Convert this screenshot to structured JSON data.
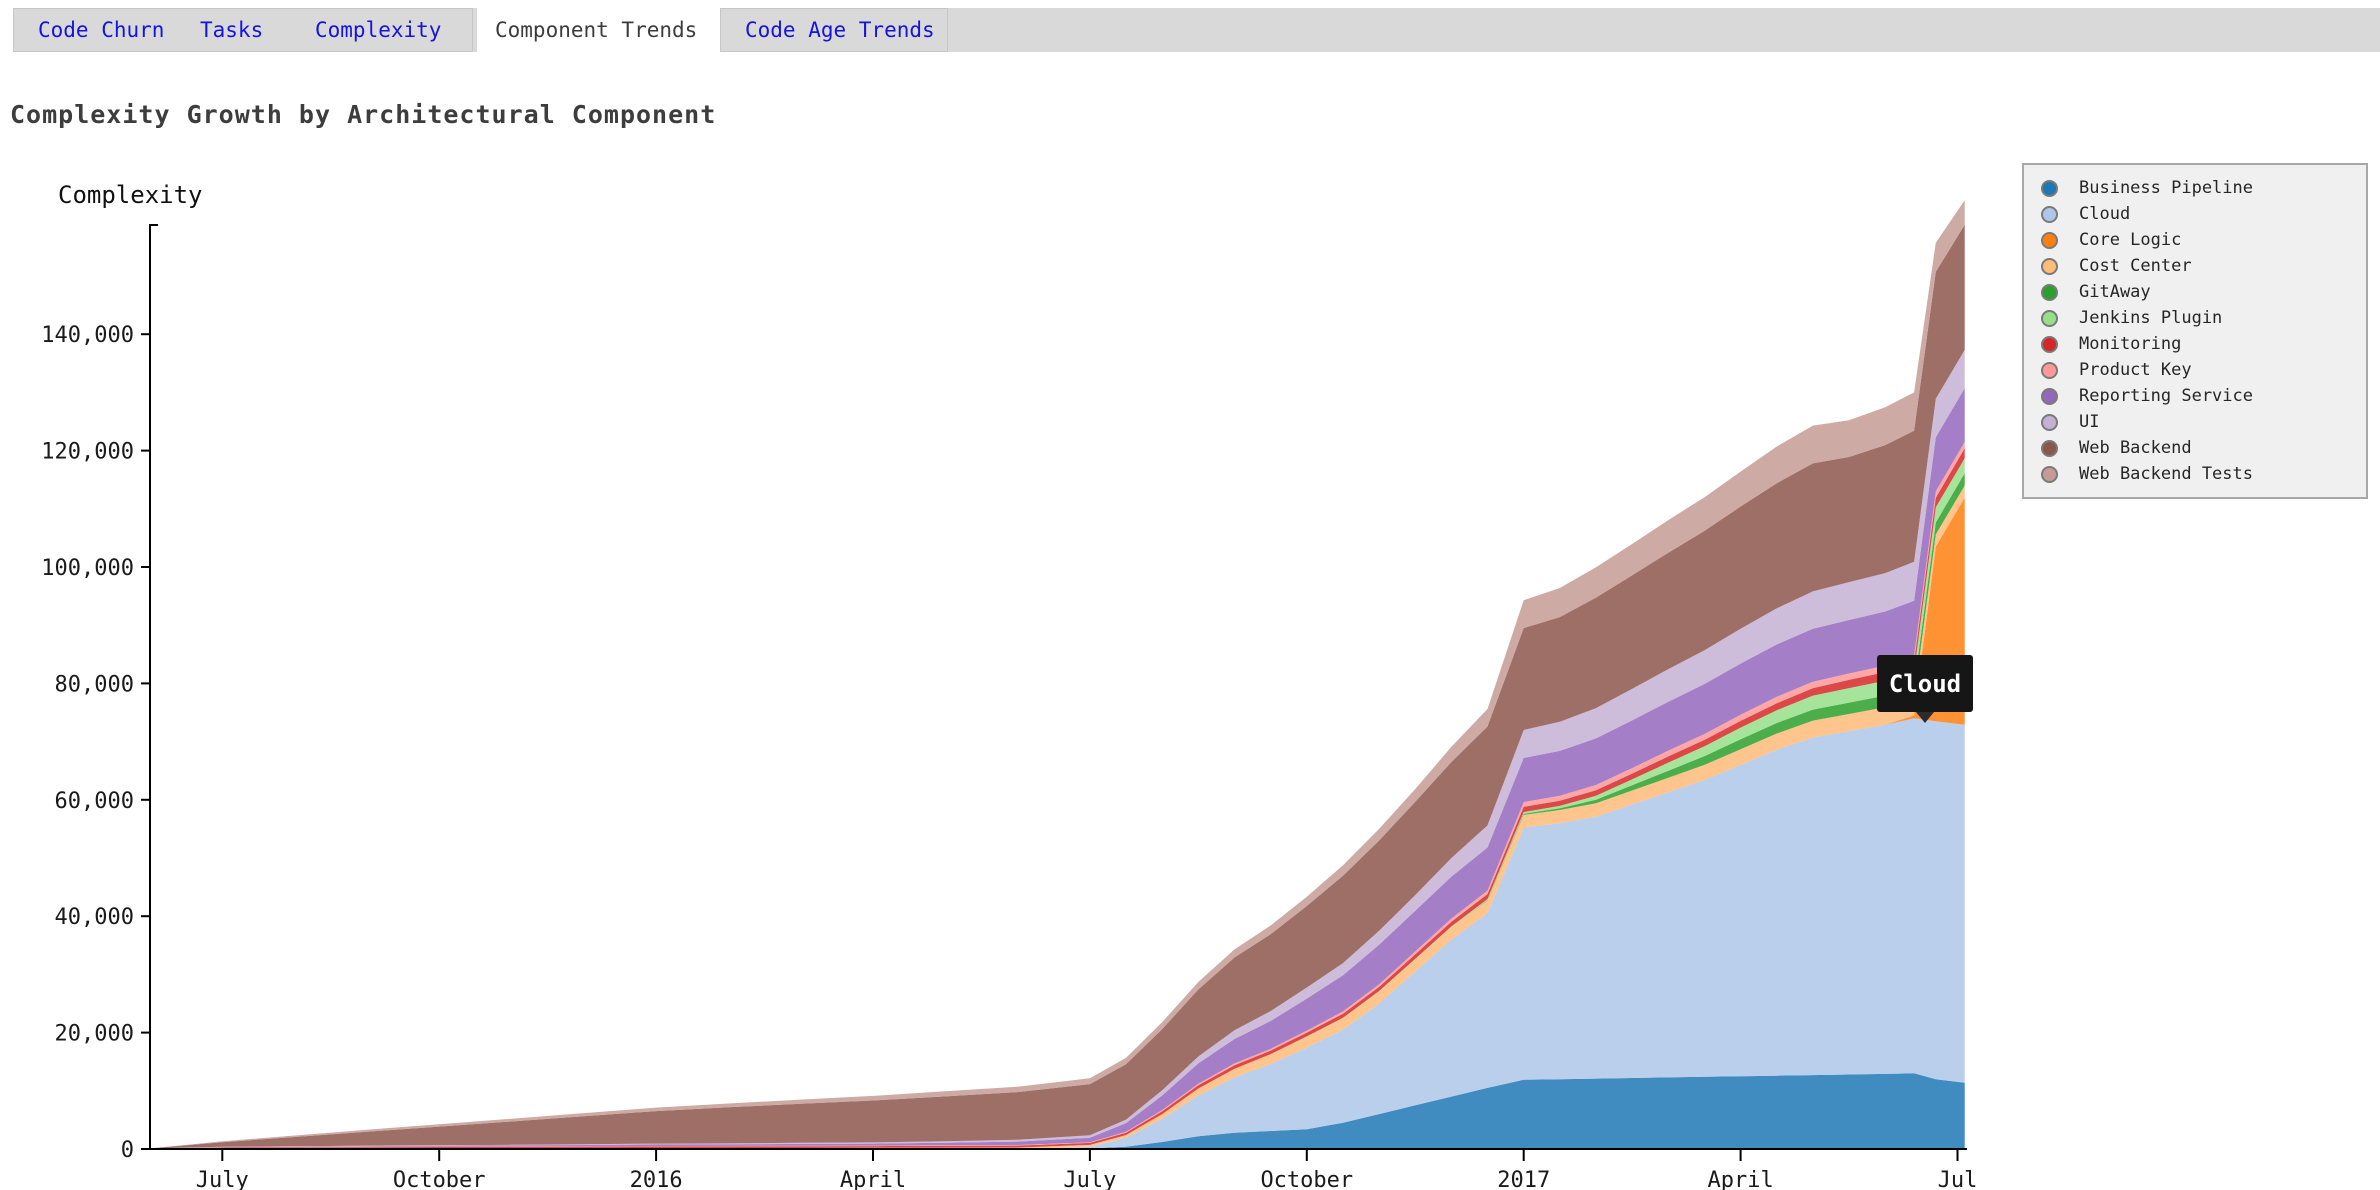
{
  "tabs": {
    "items": [
      {
        "label": "Code Churn",
        "active": false
      },
      {
        "label": "Tasks",
        "active": false
      },
      {
        "label": "Complexity",
        "active": false
      },
      {
        "label": "Component Trends",
        "active": true
      },
      {
        "label": "Code Age Trends",
        "active": false
      }
    ]
  },
  "header": {
    "title": "Complexity Growth by Architectural Component"
  },
  "tooltip": {
    "label": "Cloud"
  },
  "chart_data": {
    "type": "area",
    "stacked": true,
    "title": "Complexity Growth by Architectural Component",
    "xlabel": "",
    "ylabel": "Complexity",
    "grid": false,
    "legend_position": "right",
    "ylim": [
      0,
      158000
    ],
    "y_ticks": [
      0,
      20000,
      40000,
      60000,
      80000,
      100000,
      120000,
      140000
    ],
    "x_months_since_jun2015": [
      0,
      1,
      2,
      3,
      4,
      5,
      6,
      7,
      8,
      9,
      10,
      11,
      12,
      13,
      13.5,
      14,
      14.5,
      15,
      15.5,
      16,
      16.5,
      17,
      17.5,
      18,
      18.5,
      19,
      19.5,
      20,
      20.5,
      21,
      21.5,
      22,
      22.5,
      23,
      23.5,
      24,
      24.4,
      24.7,
      25.1
    ],
    "x_tick_months": [
      1,
      4,
      7,
      10,
      13,
      16,
      19,
      22,
      25
    ],
    "x_tick_labels": [
      "July",
      "October",
      "2016",
      "April",
      "July",
      "October",
      "2017",
      "April",
      "Jul"
    ],
    "series": [
      {
        "name": "Business Pipeline",
        "color": "#1f77b4",
        "values": [
          0,
          0,
          0,
          0,
          0,
          0,
          0,
          0,
          0,
          0,
          0,
          0,
          0,
          100,
          400,
          1200,
          2200,
          2800,
          3100,
          3400,
          4500,
          6000,
          7500,
          9000,
          10500,
          11900,
          12000,
          12100,
          12200,
          12300,
          12400,
          12500,
          12600,
          12700,
          12800,
          12900,
          13000,
          12000,
          11400
        ]
      },
      {
        "name": "Cloud",
        "color": "#aec7e8",
        "values": [
          0,
          0,
          0,
          0,
          0,
          0,
          0,
          0,
          0,
          0,
          0,
          0,
          0,
          300,
          1500,
          4000,
          7000,
          9500,
          11500,
          14000,
          16000,
          19000,
          23000,
          27000,
          30000,
          43300,
          44000,
          45000,
          47000,
          49000,
          51000,
          53500,
          56000,
          58000,
          59000,
          60000,
          61000,
          61500,
          61500
        ]
      },
      {
        "name": "Core Logic",
        "color": "#ff7f0e",
        "values": [
          0,
          0,
          0,
          0,
          0,
          0,
          0,
          0,
          0,
          0,
          0,
          0,
          0,
          0,
          0,
          0,
          0,
          0,
          0,
          0,
          0,
          0,
          0,
          0,
          0,
          0,
          0,
          0,
          0,
          0,
          0,
          0,
          0,
          0,
          0,
          0,
          500,
          30000,
          39000
        ]
      },
      {
        "name": "Cost Center",
        "color": "#ffbb78",
        "values": [
          0,
          50,
          70,
          90,
          100,
          110,
          130,
          150,
          160,
          180,
          200,
          230,
          260,
          300,
          500,
          800,
          1200,
          1500,
          1700,
          1900,
          2000,
          2050,
          2100,
          2100,
          2150,
          2200,
          2250,
          2300,
          2400,
          2500,
          2600,
          2700,
          2800,
          2900,
          2950,
          3000,
          3000,
          2100,
          2100
        ]
      },
      {
        "name": "GitAway",
        "color": "#2ca02c",
        "values": [
          0,
          0,
          0,
          0,
          0,
          0,
          0,
          0,
          0,
          0,
          0,
          0,
          0,
          0,
          0,
          0,
          0,
          0,
          0,
          0,
          0,
          0,
          0,
          0,
          100,
          200,
          300,
          600,
          900,
          1200,
          1500,
          1700,
          1800,
          1900,
          1950,
          2000,
          2000,
          2050,
          2100
        ]
      },
      {
        "name": "Jenkins Plugin",
        "color": "#98df8a",
        "values": [
          0,
          0,
          0,
          0,
          0,
          0,
          0,
          0,
          0,
          0,
          0,
          0,
          0,
          0,
          0,
          0,
          0,
          0,
          0,
          50,
          50,
          100,
          100,
          150,
          200,
          300,
          400,
          700,
          1000,
          1400,
          1700,
          2000,
          2200,
          2400,
          2500,
          2550,
          2600,
          2600,
          2600
        ]
      },
      {
        "name": "Monitoring",
        "color": "#d62728",
        "values": [
          100,
          200,
          220,
          240,
          250,
          260,
          280,
          300,
          300,
          300,
          300,
          320,
          330,
          350,
          400,
          500,
          550,
          600,
          600,
          650,
          700,
          700,
          750,
          800,
          850,
          900,
          900,
          950,
          1000,
          1050,
          1100,
          1150,
          1200,
          1300,
          1400,
          1500,
          1600,
          1650,
          1700
        ]
      },
      {
        "name": "Product Key",
        "color": "#ff9896",
        "values": [
          0,
          20,
          30,
          40,
          50,
          60,
          60,
          70,
          70,
          80,
          80,
          90,
          90,
          100,
          150,
          200,
          250,
          300,
          300,
          350,
          400,
          450,
          500,
          550,
          600,
          800,
          850,
          900,
          950,
          1000,
          1000,
          1050,
          1100,
          1100,
          1100,
          1100,
          1100,
          1100,
          1100
        ]
      },
      {
        "name": "Reporting Service",
        "color": "#9467bd",
        "values": [
          0,
          50,
          80,
          120,
          150,
          180,
          220,
          250,
          280,
          320,
          350,
          450,
          600,
          800,
          1500,
          2500,
          3500,
          4200,
          4800,
          5500,
          6200,
          6800,
          7000,
          7200,
          7400,
          7600,
          7700,
          8000,
          8200,
          8400,
          8600,
          8800,
          9000,
          9100,
          9200,
          9300,
          9400,
          9300,
          9200
        ]
      },
      {
        "name": "UI",
        "color": "#c5b0d5",
        "values": [
          0,
          50,
          70,
          90,
          100,
          120,
          130,
          150,
          160,
          180,
          200,
          250,
          300,
          400,
          600,
          900,
          1200,
          1500,
          1700,
          1900,
          2100,
          2400,
          2700,
          3200,
          3800,
          4800,
          5000,
          5200,
          5400,
          5600,
          5800,
          6000,
          6200,
          6400,
          6500,
          6600,
          6700,
          6600,
          6600
        ]
      },
      {
        "name": "Web Backend",
        "color": "#8c564b",
        "values": [
          0,
          800,
          1600,
          2400,
          3200,
          4000,
          4800,
          5600,
          6200,
          6700,
          7200,
          7700,
          8200,
          8800,
          9500,
          10500,
          11500,
          12500,
          13200,
          14000,
          15000,
          15500,
          16000,
          16500,
          17000,
          17500,
          18000,
          19000,
          19500,
          20000,
          20500,
          21000,
          21500,
          22000,
          21500,
          22000,
          22500,
          21800,
          21500
        ]
      },
      {
        "name": "Web Backend Tests",
        "color": "#c49c94",
        "values": [
          0,
          150,
          250,
          330,
          400,
          470,
          540,
          600,
          650,
          720,
          800,
          870,
          930,
          1000,
          1100,
          1200,
          1300,
          1400,
          1500,
          1600,
          1800,
          2000,
          2200,
          2600,
          3000,
          4800,
          5000,
          5200,
          5400,
          5600,
          5800,
          6000,
          6300,
          6500,
          6300,
          6500,
          6600,
          5000,
          4200
        ]
      }
    ]
  }
}
